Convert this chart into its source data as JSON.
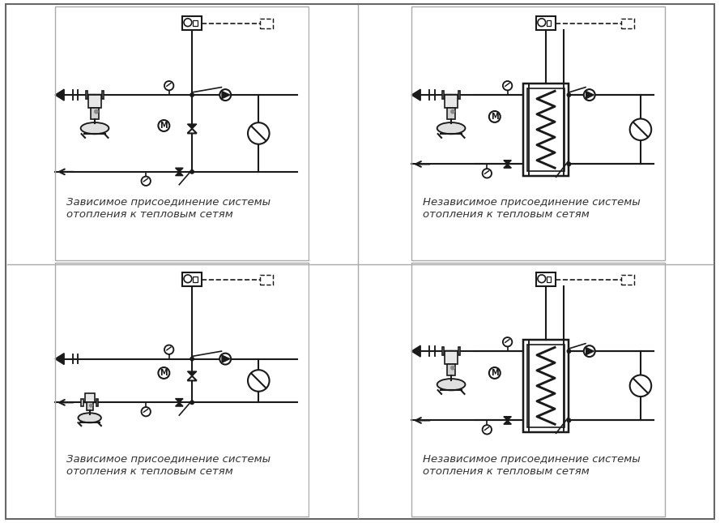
{
  "bg_color": "#ffffff",
  "lc": "#1a1a1a",
  "lw": 1.5,
  "label_dep": "Зависимое присоединение системы\nотопления к тепловым сетям",
  "label_indep": "Независимое присоединение системы\nотопления к тепловым сетям",
  "font_size": 9.5,
  "panels": [
    {
      "type": "dep",
      "variant": 1
    },
    {
      "type": "indep",
      "variant": 1
    },
    {
      "type": "dep",
      "variant": 2
    },
    {
      "type": "indep",
      "variant": 2
    }
  ]
}
